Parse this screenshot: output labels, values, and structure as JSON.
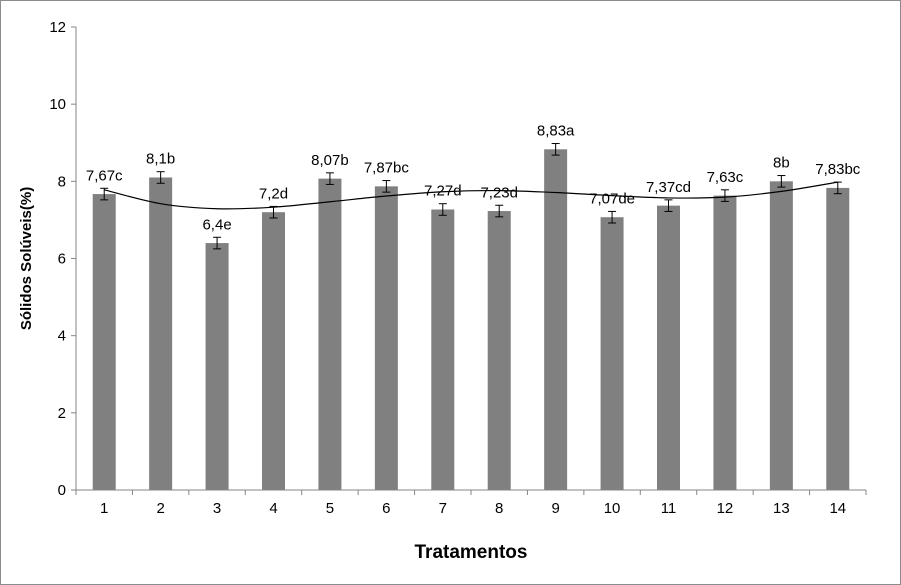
{
  "chart_data": {
    "type": "bar",
    "title": "",
    "xlabel": "Tratamentos",
    "ylabel": "Sólidos Solúveis(%)",
    "ylim": [
      0,
      12
    ],
    "yticks": [
      "0",
      "2",
      "4",
      "6",
      "8",
      "10",
      "12"
    ],
    "categories": [
      "1",
      "2",
      "3",
      "4",
      "5",
      "6",
      "7",
      "8",
      "9",
      "10",
      "11",
      "12",
      "13",
      "14"
    ],
    "values": [
      7.67,
      8.1,
      6.4,
      7.2,
      8.07,
      7.87,
      7.27,
      7.23,
      8.83,
      7.07,
      7.37,
      7.63,
      8.0,
      7.83
    ],
    "error": [
      0.15,
      0.15,
      0.15,
      0.15,
      0.15,
      0.15,
      0.15,
      0.15,
      0.15,
      0.15,
      0.15,
      0.15,
      0.15,
      0.15
    ],
    "data_labels": [
      "7,67c",
      "8,1b",
      "6,4e",
      "7,2d",
      "8,07b",
      "7,87bc",
      "7,27d",
      "7,23d",
      "8,83a",
      "7,07de",
      "7,37cd",
      "7,63c",
      "8b",
      "7,83bc"
    ],
    "trendline": {
      "type": "polynomial",
      "values": [
        7.78,
        7.42,
        7.29,
        7.33,
        7.47,
        7.62,
        7.73,
        7.76,
        7.71,
        7.63,
        7.57,
        7.59,
        7.74,
        7.98
      ]
    },
    "grid": false,
    "legend": "none",
    "colors": {
      "bar": "#808080",
      "axis": "#868686",
      "trend": "#000000",
      "frame": "#8c8c8c"
    }
  }
}
